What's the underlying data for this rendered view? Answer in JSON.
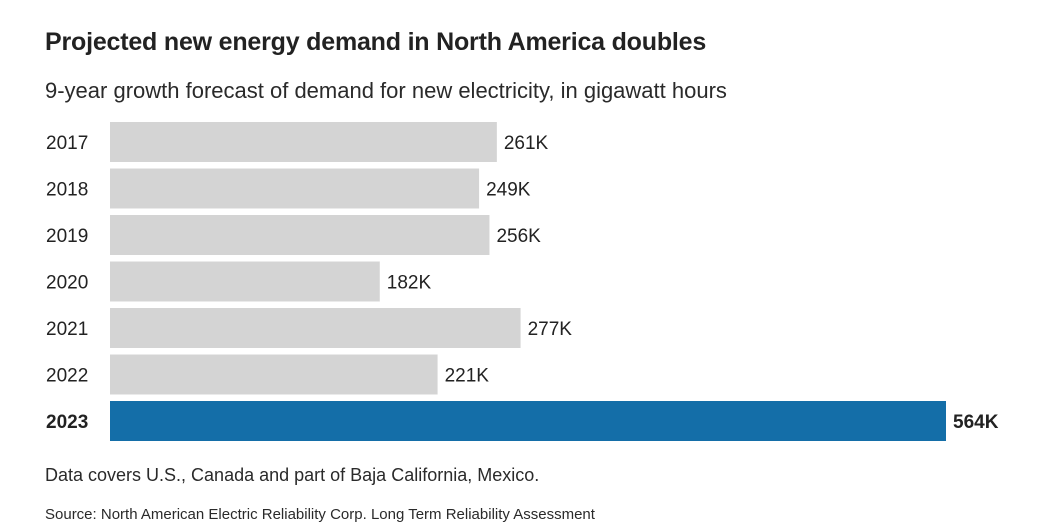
{
  "chart_data": {
    "type": "bar",
    "orientation": "horizontal",
    "title": "Projected new energy demand in North America doubles",
    "subtitle": "9-year growth forecast of demand for new electricity, in gigawatt hours",
    "categories": [
      "2017",
      "2018",
      "2019",
      "2020",
      "2021",
      "2022",
      "2023"
    ],
    "values": [
      261,
      249,
      256,
      182,
      277,
      221,
      564
    ],
    "value_labels": [
      "261K",
      "249K",
      "256K",
      "182K",
      "277K",
      "221K",
      "564K"
    ],
    "value_unit": "thousand GWh",
    "highlight_index": 6,
    "xlabel": "",
    "ylabel": "",
    "xlim": [
      0,
      564
    ],
    "grid": false,
    "colors": {
      "default": "#d4d4d4",
      "highlight": "#146ea8"
    }
  },
  "notes": {
    "coverage": "Data covers U.S., Canada and part of Baja California, Mexico.",
    "source": "Source: North American Electric Reliability Corp. Long Term Reliability Assessment"
  }
}
